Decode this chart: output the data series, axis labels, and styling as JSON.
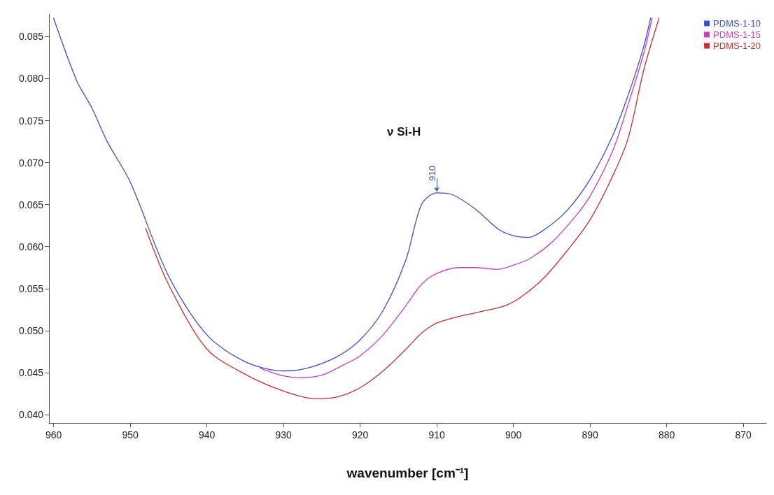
{
  "chart_data": {
    "type": "line",
    "xlabel": "wavenumber [cm⁻¹]",
    "xlim": [
      960.6,
      867
    ],
    "xticks": [
      960,
      950,
      940,
      930,
      920,
      910,
      900,
      890,
      880,
      870
    ],
    "ylim": [
      0.039,
      0.0877
    ],
    "yticks": [
      {
        "value": 0.04,
        "label": "0.040"
      },
      {
        "value": 0.045,
        "label": "0.045"
      },
      {
        "value": 0.05,
        "label": "0.050"
      },
      {
        "value": 0.055,
        "label": "0.055"
      },
      {
        "value": 0.06,
        "label": "0.060"
      },
      {
        "value": 0.065,
        "label": "0.065"
      },
      {
        "value": 0.07,
        "label": "0.070"
      },
      {
        "value": 0.075,
        "label": "0.075"
      },
      {
        "value": 0.08,
        "label": "0.080"
      },
      {
        "value": 0.085,
        "label": "0.085"
      }
    ],
    "grid": false,
    "legend": "top right",
    "marker": "none",
    "line_style": "solid",
    "series": [
      {
        "name": "PDMS-1-10",
        "color": "#3b4fc8",
        "x": [
          960,
          957,
          955,
          953,
          950,
          945,
          940,
          935,
          930,
          927,
          923,
          920,
          917,
          914,
          912,
          910,
          908,
          905,
          902,
          900,
          898,
          896,
          893,
          890,
          887,
          885,
          883,
          882.1
        ],
        "values": [
          0.0872,
          0.0798,
          0.0765,
          0.0725,
          0.0677,
          0.0565,
          0.0495,
          0.0463,
          0.0452,
          0.0455,
          0.0469,
          0.0489,
          0.0524,
          0.0585,
          0.065,
          0.0664,
          0.0662,
          0.0645,
          0.0621,
          0.0613,
          0.0611,
          0.062,
          0.0643,
          0.068,
          0.0733,
          0.0781,
          0.0838,
          0.0872
        ]
      },
      {
        "name": "PDMS-1-15",
        "color": "#c83fc0",
        "x": [
          933,
          930,
          928,
          925,
          922,
          920,
          917,
          914,
          912,
          910,
          907,
          905,
          902,
          900,
          898,
          895,
          892,
          890,
          887,
          885,
          883,
          881.9
        ],
        "values": [
          0.0455,
          0.0446,
          0.0444,
          0.0447,
          0.046,
          0.047,
          0.0495,
          0.053,
          0.0555,
          0.0568,
          0.0575,
          0.0575,
          0.0573,
          0.0578,
          0.0585,
          0.0605,
          0.0635,
          0.066,
          0.0715,
          0.077,
          0.083,
          0.0872
        ]
      },
      {
        "name": "PDMS-1-20",
        "color": "#c83030",
        "x": [
          948,
          945,
          940,
          935,
          930,
          926,
          923,
          920,
          917,
          914,
          912,
          910,
          907,
          904,
          901,
          899,
          896,
          893,
          890,
          887,
          885,
          883,
          881
        ],
        "values": [
          0.0622,
          0.0555,
          0.0478,
          0.0448,
          0.0428,
          0.0419,
          0.0421,
          0.0432,
          0.0452,
          0.0478,
          0.0497,
          0.0509,
          0.0517,
          0.0523,
          0.053,
          0.054,
          0.0563,
          0.0595,
          0.0632,
          0.0685,
          0.073,
          0.081,
          0.0872
        ]
      }
    ],
    "annotations": [
      "ν Si-H",
      {
        "text": "910",
        "x": 910,
        "y": 0.0664
      }
    ]
  }
}
